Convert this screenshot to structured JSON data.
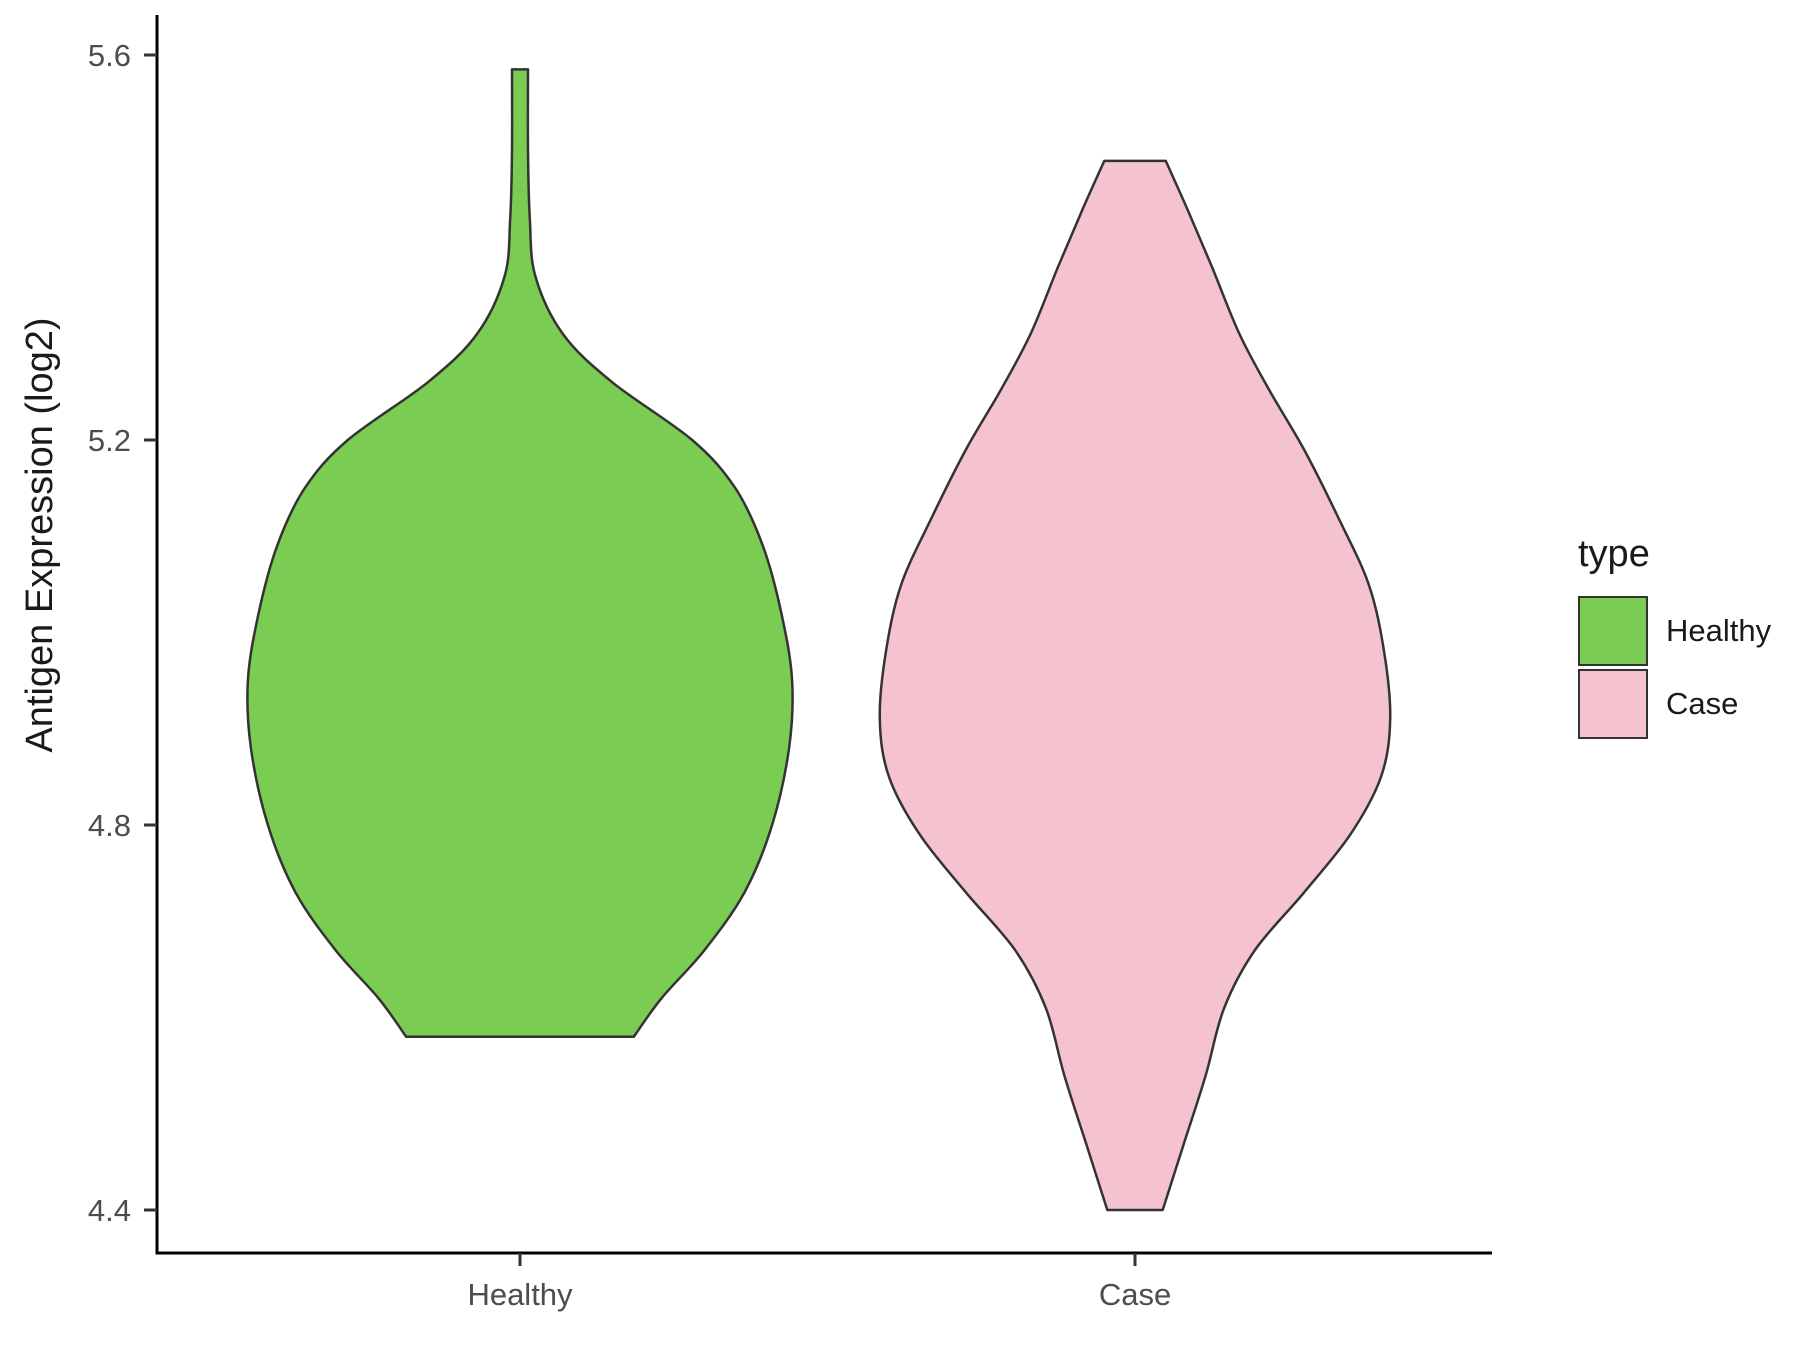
{
  "chart_data": {
    "type": "violin",
    "title": "",
    "xlabel": "",
    "ylabel": "Antigen Expression (log2)",
    "categories": [
      "Healthy",
      "Case"
    ],
    "y_axis": {
      "ticks": [
        {
          "value": 4.4,
          "label": "4.4"
        },
        {
          "value": 4.8,
          "label": "4.8"
        },
        {
          "value": 5.2,
          "label": "5.2"
        },
        {
          "value": 5.6,
          "label": "5.6"
        }
      ],
      "range_shown": [
        4.33,
        5.64
      ]
    },
    "legend": {
      "title": "type",
      "position": "right",
      "entries": [
        {
          "label": "Healthy",
          "color": "#7bcc52"
        },
        {
          "label": "Case",
          "color": "#f5c2cf"
        }
      ]
    },
    "style": {
      "background": "#ffffff",
      "outline_color": "#333333",
      "outline_width": 2.5,
      "axis_color": "#000000",
      "tick_label_color": "#4d4d4d",
      "axis_title_color": "#1a1a1a",
      "grid": "off"
    },
    "series": [
      {
        "name": "Healthy",
        "fill": "#7bcc52",
        "x_center": 1,
        "profile": [
          [
            5.585,
            0.026
          ],
          [
            5.5,
            0.026
          ],
          [
            5.43,
            0.032
          ],
          [
            5.37,
            0.05
          ],
          [
            5.31,
            0.14
          ],
          [
            5.26,
            0.3
          ],
          [
            5.2,
            0.56
          ],
          [
            5.15,
            0.7
          ],
          [
            5.09,
            0.79
          ],
          [
            5.02,
            0.85
          ],
          [
            4.95,
            0.885
          ],
          [
            4.88,
            0.875
          ],
          [
            4.8,
            0.82
          ],
          [
            4.73,
            0.73
          ],
          [
            4.67,
            0.6
          ],
          [
            4.62,
            0.46
          ],
          [
            4.58,
            0.37
          ]
        ]
      },
      {
        "name": "Case",
        "fill": "#f5c2cf",
        "x_center": 2,
        "profile": [
          [
            5.49,
            0.1
          ],
          [
            5.44,
            0.17
          ],
          [
            5.38,
            0.25
          ],
          [
            5.31,
            0.34
          ],
          [
            5.25,
            0.44
          ],
          [
            5.19,
            0.55
          ],
          [
            5.12,
            0.66
          ],
          [
            5.05,
            0.76
          ],
          [
            4.98,
            0.81
          ],
          [
            4.91,
            0.83
          ],
          [
            4.85,
            0.8
          ],
          [
            4.79,
            0.7
          ],
          [
            4.73,
            0.55
          ],
          [
            4.67,
            0.39
          ],
          [
            4.61,
            0.29
          ],
          [
            4.54,
            0.23
          ],
          [
            4.47,
            0.16
          ],
          [
            4.4,
            0.09
          ]
        ]
      }
    ]
  }
}
